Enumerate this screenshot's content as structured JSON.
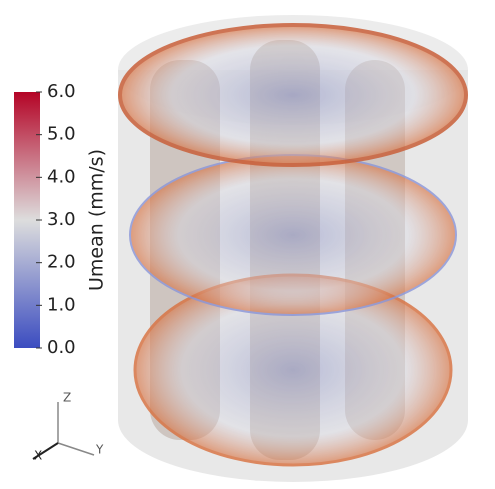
{
  "colorbar": {
    "title": "Umean (mm/s)",
    "range": [
      0,
      6
    ],
    "ticks": [
      {
        "value": 6,
        "label": "6.0"
      },
      {
        "value": 5,
        "label": "5.0"
      },
      {
        "value": 4,
        "label": "4.0"
      },
      {
        "value": 3,
        "label": "3.0"
      },
      {
        "value": 2,
        "label": "2.0"
      },
      {
        "value": 1,
        "label": "1.0"
      },
      {
        "value": 0,
        "label": "0.0"
      }
    ]
  },
  "axes": {
    "z": "Z",
    "x": "X",
    "y": "Y"
  }
}
